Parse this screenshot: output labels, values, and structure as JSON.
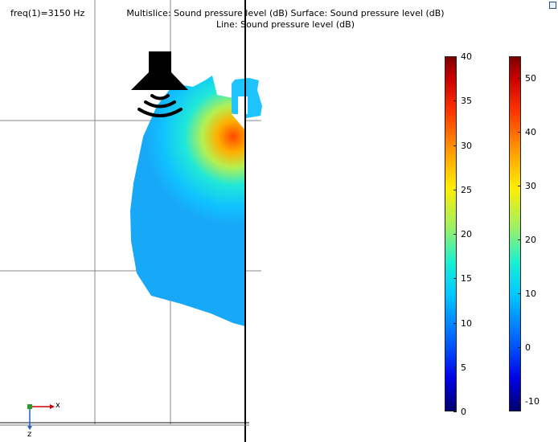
{
  "header": {
    "freq": "freq(1)=3150 Hz",
    "title_line1": "Multislice: Sound pressure level (dB)  Surface: Sound pressure level (dB)",
    "title_line2": "Line: Sound pressure level (dB)"
  },
  "icons": {
    "speaker": "speaker-icon",
    "expand": "expand-icon",
    "axis_triad": "axis-triad-icon"
  },
  "axes": {
    "x_label": "x",
    "z_label": "z"
  },
  "colorbar_multislice": {
    "ticks": [
      "40",
      "35",
      "30",
      "25",
      "20",
      "15",
      "10",
      "5",
      "0"
    ],
    "min": 0,
    "max": 40
  },
  "colorbar_surface": {
    "ticks": [
      "50",
      "40",
      "30",
      "20",
      "10",
      "0",
      "-10"
    ],
    "min": -12,
    "max": 54
  },
  "colors": {
    "grid": "#888888",
    "axis_x": "#cc0000",
    "axis_y": "#2a9a2a",
    "axis_z": "#2060c0"
  }
}
